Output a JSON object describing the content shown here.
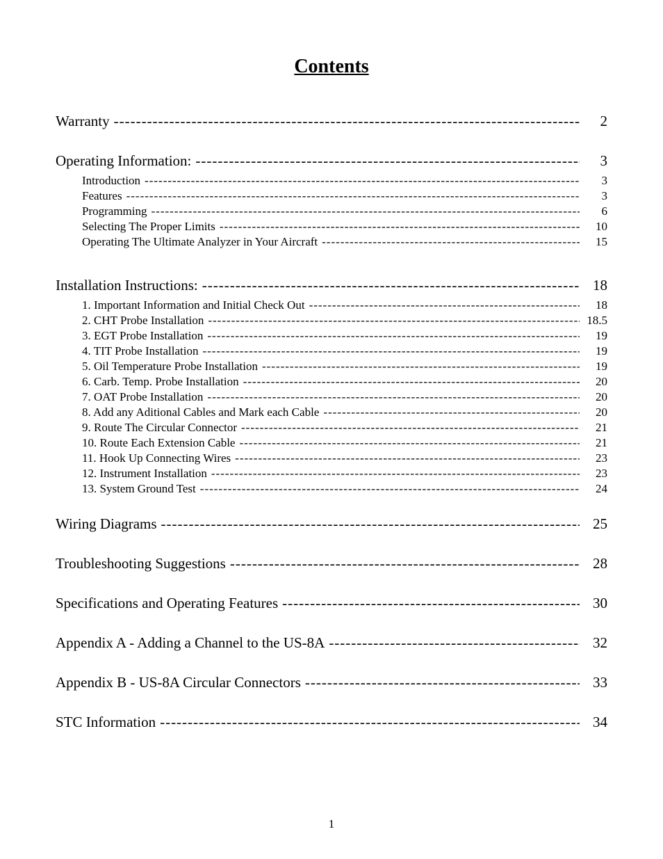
{
  "title": "Contents",
  "page_number": "1",
  "leader_char_main": "-",
  "leader_char_sub": "-",
  "text_color": "#000000",
  "background_color": "#ffffff",
  "title_fontsize": 28,
  "main_fontsize": 21,
  "sub_fontsize": 17,
  "entries": [
    {
      "type": "main",
      "label": "Warranty",
      "page": "2"
    },
    {
      "type": "spacer",
      "size": "md"
    },
    {
      "type": "main",
      "label": "Operating Information:",
      "page": "3"
    },
    {
      "type": "sub",
      "label": "Introduction",
      "page": "3"
    },
    {
      "type": "sub",
      "label": "Features",
      "page": "3"
    },
    {
      "type": "sub",
      "label": "Programming",
      "page": "6"
    },
    {
      "type": "sub",
      "label": "Selecting The Proper Limits",
      "page": "10"
    },
    {
      "type": "sub",
      "label": "Operating The Ultimate Analyzer in Your Aircraft",
      "page": "15"
    },
    {
      "type": "spacer",
      "size": "lg"
    },
    {
      "type": "main",
      "label": "Installation Instructions:",
      "page": "18"
    },
    {
      "type": "sub",
      "label": "1.  Important Information and Initial Check Out",
      "page": "18"
    },
    {
      "type": "sub",
      "label": "2.  CHT Probe Installation",
      "page": "18.5"
    },
    {
      "type": "sub",
      "label": "3.  EGT Probe Installation",
      "page": "19"
    },
    {
      "type": "sub",
      "label": "4.  TIT Probe Installation",
      "page": "19"
    },
    {
      "type": "sub",
      "label": "5.  Oil Temperature Probe Installation",
      "page": "19"
    },
    {
      "type": "sub",
      "label": "6.  Carb. Temp. Probe Installation",
      "page": "20"
    },
    {
      "type": "sub",
      "label": "7. OAT Probe Installation",
      "page": "20"
    },
    {
      "type": "sub",
      "label": "8.   Add any Aditional Cables and Mark each Cable",
      "page": "20"
    },
    {
      "type": "sub",
      "label": "9. Route The Circular Connector",
      "page": "21"
    },
    {
      "type": "sub",
      "label": "10. Route Each Extension Cable",
      "page": "21"
    },
    {
      "type": "sub",
      "label": "11. Hook Up Connecting Wires",
      "page": "23"
    },
    {
      "type": "sub",
      "label": "12. Instrument Installation",
      "page": "23"
    },
    {
      "type": "sub",
      "label": "13. System Ground Test",
      "page": "24"
    },
    {
      "type": "spacer",
      "size": "md"
    },
    {
      "type": "main",
      "label": "Wiring Diagrams",
      "page": "25"
    },
    {
      "type": "spacer",
      "size": "md"
    },
    {
      "type": "main",
      "label": "Troubleshooting Suggestions",
      "page": "28"
    },
    {
      "type": "spacer",
      "size": "md"
    },
    {
      "type": "main",
      "label": "Specifications and Operating Features",
      "page": "30"
    },
    {
      "type": "spacer",
      "size": "md"
    },
    {
      "type": "main",
      "label": "Appendix A - Adding a Channel to the US-8A",
      "page": "32"
    },
    {
      "type": "spacer",
      "size": "md"
    },
    {
      "type": "main",
      "label": "Appendix B - US-8A Circular Connectors",
      "page": "33"
    },
    {
      "type": "spacer",
      "size": "md"
    },
    {
      "type": "main",
      "label": "STC Information",
      "page": "34"
    }
  ]
}
